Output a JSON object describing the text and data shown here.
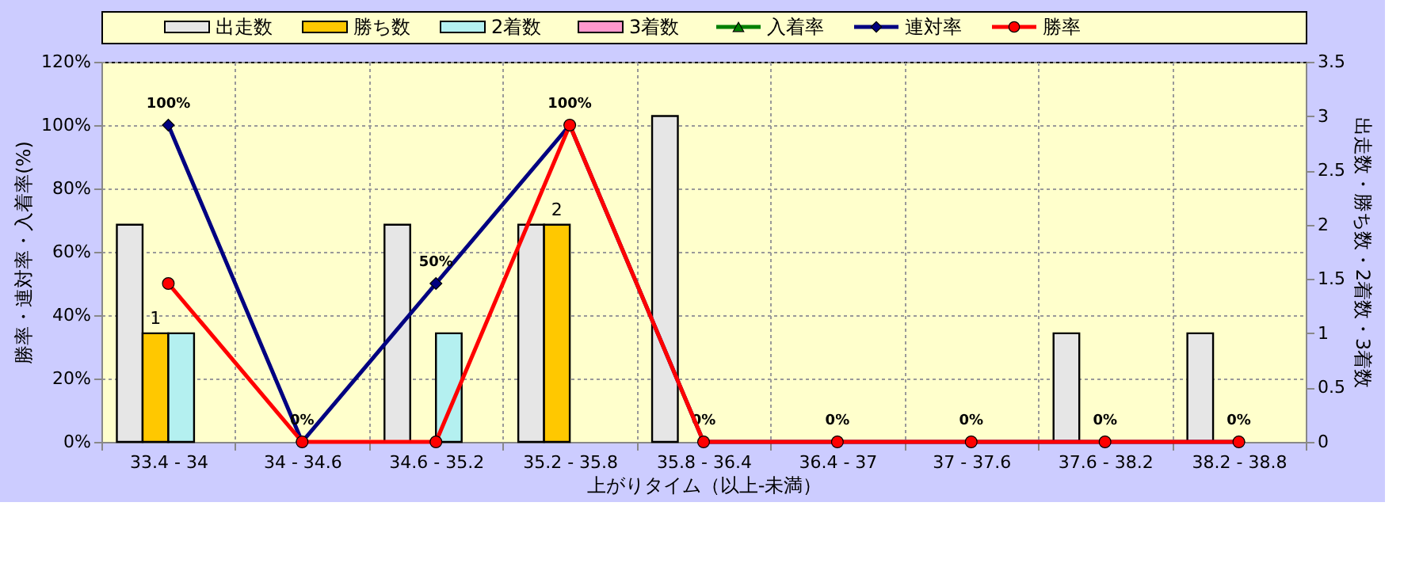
{
  "chart_data": {
    "type": "bar",
    "xlabel": "上がりタイム（以上-未満）",
    "ylabel": "勝率・連対率・入着率(%)",
    "y2label": "出走数・勝ち数・2着数・3着数",
    "categories": [
      "33.4 - 34",
      "34 - 34.6",
      "34.6 - 35.2",
      "35.2 - 35.8",
      "35.8 - 36.4",
      "36.4 - 37",
      "37 - 37.6",
      "37.6 - 38.2",
      "38.2 - 38.8"
    ],
    "series": [
      {
        "name": "出走数",
        "axis": "y2",
        "color": "#e6e6e6",
        "values": [
          2,
          0,
          2,
          2,
          3,
          0,
          0,
          1,
          1
        ]
      },
      {
        "name": "勝ち数",
        "axis": "y2",
        "color": "#ffc800",
        "values": [
          1,
          0,
          0,
          2,
          0,
          0,
          0,
          0,
          0
        ],
        "value_labels": [
          "1",
          null,
          null,
          "2",
          null,
          null,
          null,
          null,
          null
        ]
      },
      {
        "name": "2着数",
        "axis": "y2",
        "color": "#b4f0f0",
        "values": [
          1,
          0,
          1,
          0,
          0,
          0,
          0,
          0,
          0
        ]
      },
      {
        "name": "3着数",
        "axis": "y2",
        "color": "#ff99cc",
        "values": [
          0,
          0,
          0,
          0,
          0,
          0,
          0,
          0,
          0
        ]
      },
      {
        "name": "入着率",
        "type": "line",
        "marker": "triangle",
        "color": "#008000",
        "values": [
          null,
          null,
          null,
          null,
          null,
          null,
          null,
          null,
          null
        ]
      },
      {
        "name": "連対率",
        "type": "line",
        "marker": "diamond",
        "color": "#000080",
        "values": [
          100,
          0,
          50,
          100,
          0,
          0,
          0,
          0,
          0
        ],
        "value_labels": [
          "100%",
          "0%",
          "50%",
          "100%",
          "0%",
          "0%",
          "0%",
          "0%",
          "0%"
        ]
      },
      {
        "name": "勝率",
        "type": "line",
        "marker": "circle",
        "color": "#ff0000",
        "values": [
          50,
          0,
          0,
          100,
          0,
          0,
          0,
          0,
          0
        ]
      }
    ],
    "ylim": [
      0,
      120
    ],
    "yticks": [
      {
        "value": 0,
        "label": "0%"
      },
      {
        "value": 20,
        "label": "20%"
      },
      {
        "value": 40,
        "label": "40%"
      },
      {
        "value": 60,
        "label": "60%"
      },
      {
        "value": 80,
        "label": "80%"
      },
      {
        "value": 100,
        "label": "100%"
      },
      {
        "value": 120,
        "label": "120%"
      }
    ],
    "y2lim": [
      0,
      3.5
    ],
    "y2ticks": [
      0,
      0.5,
      1,
      1.5,
      2,
      2.5,
      3,
      3.5
    ],
    "grid": true,
    "legend": "top"
  }
}
